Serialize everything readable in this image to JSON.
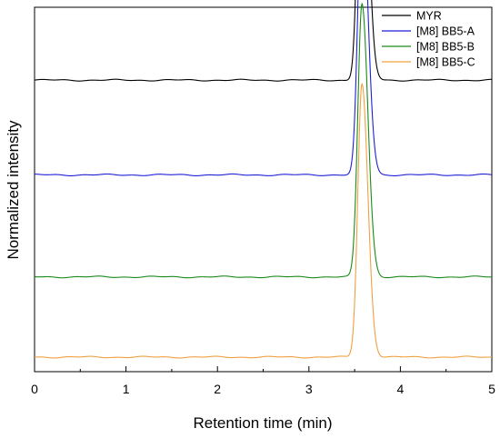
{
  "chart_data": {
    "type": "line",
    "xlabel": "Retention time (min)",
    "ylabel": "Normalized intensity",
    "xlim": [
      0,
      5
    ],
    "xticks": [
      "0",
      "1",
      "2",
      "3",
      "4",
      "5"
    ],
    "grid": false,
    "legend_position": "top-right",
    "peak_center": 3.58,
    "series": [
      {
        "name": "MYR",
        "color": "#000000",
        "baseline": 0.8,
        "peak_height": 0.82
      },
      {
        "name": "[M8] BB5-A",
        "color": "#1f1fd6",
        "baseline": 0.54,
        "peak_height": 0.76
      },
      {
        "name": "[M8] BB5-B",
        "color": "#1a8a1a",
        "baseline": 0.26,
        "peak_height": 0.75
      },
      {
        "name": "[M8] BB5-C",
        "color": "#f0a040",
        "baseline": 0.04,
        "peak_height": 0.75
      }
    ]
  }
}
